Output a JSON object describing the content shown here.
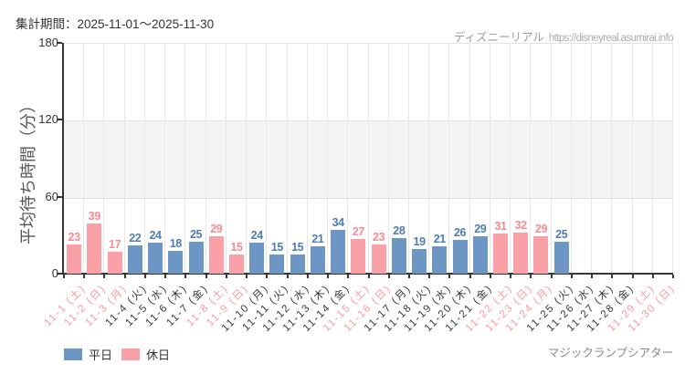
{
  "header": {
    "period_label": "集計期間：2025-11-01～2025-11-30"
  },
  "watermark": {
    "site_name": "ディズニーリアル",
    "site_url": "https://disneyreal.asumirai.info"
  },
  "chart_data": {
    "type": "bar",
    "title": "",
    "xlabel": "",
    "ylabel": "平均待ち時間（分）",
    "ylim": [
      0,
      180
    ],
    "yticks": [
      0,
      60,
      120,
      180
    ],
    "grid": true,
    "legend_position": "bottom-left",
    "categories": [
      "11-1 (土)",
      "11-2 (日)",
      "11-3 (月)",
      "11-4 (火)",
      "11-5 (水)",
      "11-6 (木)",
      "11-7 (金)",
      "11-8 (土)",
      "11-9 (日)",
      "11-10 (月)",
      "11-11 (火)",
      "11-12 (水)",
      "11-13 (木)",
      "11-14 (金)",
      "11-15 (土)",
      "11-16 (日)",
      "11-17 (月)",
      "11-18 (火)",
      "11-19 (水)",
      "11-20 (木)",
      "11-21 (金)",
      "11-22 (土)",
      "11-23 (日)",
      "11-24 (月)",
      "11-25 (火)",
      "11-26 (水)",
      "11-27 (木)",
      "11-28 (金)",
      "11-29 (土)",
      "11-30 (日)"
    ],
    "values": [
      23,
      39,
      17,
      22,
      24,
      18,
      25,
      29,
      15,
      24,
      15,
      15,
      21,
      34,
      27,
      23,
      28,
      19,
      21,
      26,
      29,
      31,
      32,
      29,
      25,
      null,
      null,
      null,
      null,
      null
    ],
    "day_types": [
      "holiday",
      "holiday",
      "holiday",
      "weekday",
      "weekday",
      "weekday",
      "weekday",
      "holiday",
      "holiday",
      "weekday",
      "weekday",
      "weekday",
      "weekday",
      "weekday",
      "holiday",
      "holiday",
      "weekday",
      "weekday",
      "weekday",
      "weekday",
      "weekday",
      "holiday",
      "holiday",
      "holiday",
      "weekday",
      "weekday",
      "weekday",
      "weekday",
      "holiday",
      "holiday"
    ],
    "legend": [
      {
        "label": "平日",
        "type": "weekday"
      },
      {
        "label": "休日",
        "type": "holiday"
      }
    ]
  },
  "colors": {
    "weekday_bar": "#6e96c4",
    "holiday_bar": "#f9a1a6",
    "weekday_value_label": "#4d7db3",
    "holiday_value_label": "#fa8a92",
    "weekday_axis_label": "#383838",
    "holiday_axis_label": "#fa98a0",
    "band": "#f4f4f4"
  },
  "footer": {
    "attraction_name": "マジックランプシアター"
  }
}
